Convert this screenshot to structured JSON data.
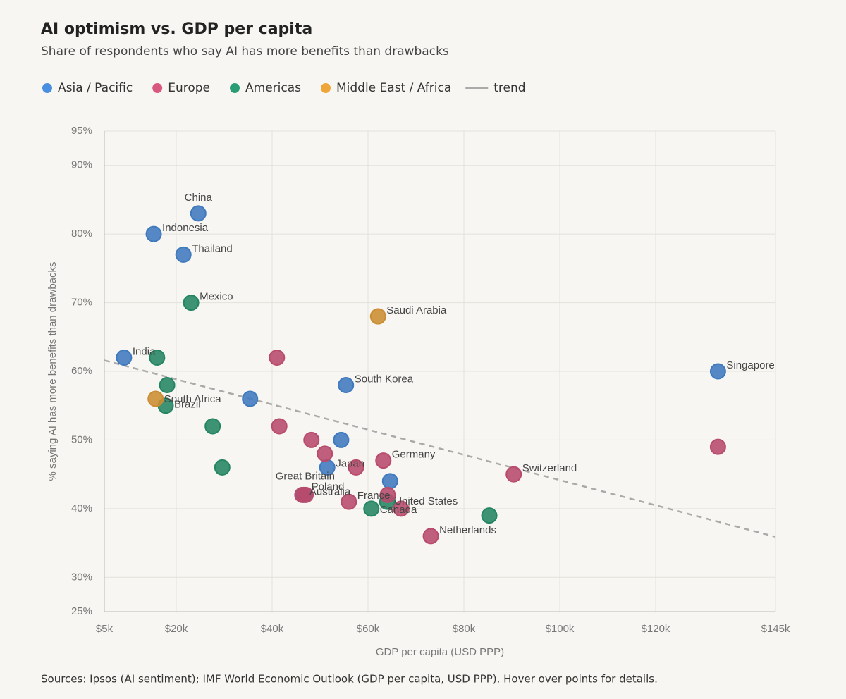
{
  "chart_data": {
    "type": "scatter",
    "title": "AI optimism vs. GDP per capita",
    "subtitle": "Share of respondents who say AI has more benefits than drawbacks",
    "x_label": "GDP per capita (USD PPP)",
    "y_label": "% saying AI has more benefits than drawbacks",
    "source": "Sources: Ipsos (AI sentiment); IMF World Economic Outlook (GDP per capita, USD PPP). Hover over points for details.",
    "grid": true,
    "xlim": [
      5000,
      145000
    ],
    "xticks": [
      {
        "value": 5000,
        "label": "$5k"
      },
      {
        "value": 20000,
        "label": "$20k"
      },
      {
        "value": 40000,
        "label": "$40k"
      },
      {
        "value": 60000,
        "label": "$60k"
      },
      {
        "value": 80000,
        "label": "$80k"
      },
      {
        "value": 100000,
        "label": "$100k"
      },
      {
        "value": 120000,
        "label": "$120k"
      },
      {
        "value": 145000,
        "label": "$145k"
      }
    ],
    "ylim": [
      25,
      95
    ],
    "yticks": [
      {
        "value": 25,
        "label": "25%"
      },
      {
        "value": 30,
        "label": "30%"
      },
      {
        "value": 40,
        "label": "40%"
      },
      {
        "value": 50,
        "label": "50%"
      },
      {
        "value": 60,
        "label": "60%"
      },
      {
        "value": 70,
        "label": "70%"
      },
      {
        "value": 80,
        "label": "80%"
      },
      {
        "value": 90,
        "label": "90%"
      },
      {
        "value": 95,
        "label": "95%"
      }
    ],
    "series": [
      {
        "name": "Asia / Pacific",
        "color": "#4a8ee0",
        "x": [
          24600,
          15300,
          21500,
          9100,
          35400,
          55400,
          54400,
          51500,
          64600,
          133000,
          46600
        ],
        "values": [
          83,
          80,
          77,
          62,
          56,
          58,
          50,
          46,
          44,
          60,
          42
        ],
        "labels": [
          "China",
          "Indonesia",
          "Thailand",
          "India",
          null,
          "South Korea",
          null,
          "Japan",
          null,
          "Singapore",
          "Australia"
        ]
      },
      {
        "name": "Europe",
        "color": "#d9587f",
        "x": [
          41000,
          41500,
          48200,
          51000,
          57500,
          63200,
          90400,
          133000,
          46300,
          47000,
          56000,
          64100,
          66900,
          73100
        ],
        "values": [
          62,
          52,
          50,
          48,
          46,
          47,
          45,
          49,
          42,
          42,
          41,
          42,
          40,
          36
        ],
        "labels": [
          null,
          null,
          null,
          null,
          null,
          "Germany",
          "Switzerland",
          null,
          "Great Britain",
          "Poland",
          "France",
          null,
          null,
          "Netherlands"
        ]
      },
      {
        "name": "Americas",
        "color": "#2a9d74",
        "x": [
          16000,
          23100,
          18100,
          17800,
          27600,
          29600,
          60700,
          85300,
          64000
        ],
        "values": [
          62,
          70,
          58,
          55,
          52,
          46,
          40,
          39,
          41
        ],
        "labels": [
          null,
          "Mexico",
          null,
          "Brazil",
          null,
          null,
          "Canada",
          null,
          "United States"
        ]
      },
      {
        "name": "Middle East / Africa",
        "color": "#eea63a",
        "x": [
          62100,
          15700
        ],
        "values": [
          68,
          56
        ],
        "labels": [
          "Saudi Arabia",
          "South Africa"
        ]
      }
    ],
    "trend": {
      "name": "trend",
      "color": "#aaaaaa",
      "x": [
        5000,
        145000
      ],
      "values": [
        61.6,
        35.9
      ]
    }
  }
}
